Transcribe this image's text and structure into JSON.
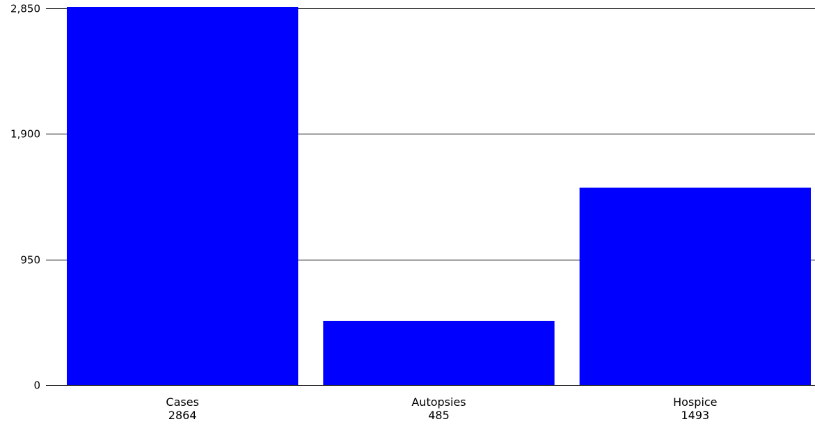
{
  "chart_data": {
    "type": "bar",
    "title": "",
    "xlabel": "",
    "ylabel": "",
    "categories": [
      "Cases",
      "Autopsies",
      "Hospice"
    ],
    "values": [
      2864,
      485,
      1493
    ],
    "value_labels": [
      "2864",
      "485",
      "1493"
    ],
    "ylim": [
      0,
      2850
    ],
    "yticks": [
      0,
      950,
      1900,
      2850
    ],
    "ytick_labels": [
      "0",
      "950",
      "1,900",
      "2,850"
    ],
    "grid": true,
    "legend": "none",
    "bar_color": "#0000ff",
    "grid_color": "#000000"
  }
}
